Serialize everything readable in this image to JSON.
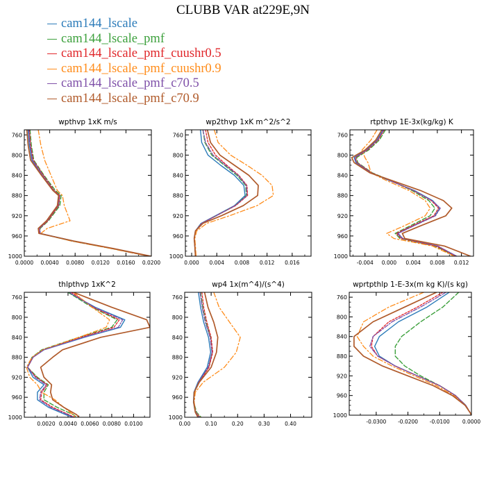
{
  "title": "CLUBB VAR at229E,9N",
  "colors": {
    "cam144_lscale": "#2b7bb9",
    "cam144_lscale_pmf": "#3ca03c",
    "cam144_lscale_pmf_cuushr0.5": "#e0262a",
    "cam144_lscale_pmf_cuushr0.9": "#ff8c1a",
    "cam144_lscale_pmf_c70.5": "#7e4fa8",
    "cam144_lscale_pmf_c70.9": "#b05a2a"
  },
  "legend": [
    {
      "label": "cam144_lscale",
      "color": "#2b7bb9"
    },
    {
      "label": "cam144_lscale_pmf",
      "color": "#3ca03c"
    },
    {
      "label": "cam144_lscale_pmf_cuushr0.5",
      "color": "#e0262a"
    },
    {
      "label": "cam144_lscale_pmf_cuushr0.9",
      "color": "#ff8c1a"
    },
    {
      "label": "cam144_lscale_pmf_c70.5",
      "color": "#7e4fa8"
    },
    {
      "label": "cam144_lscale_pmf_c70.9",
      "color": "#b05a2a"
    }
  ],
  "chart_data": [
    {
      "type": "line",
      "title": "wpthvp  1xK m/s",
      "xlim": [
        0,
        0.02
      ],
      "ylim": [
        750,
        1000
      ],
      "xticks": [
        0,
        0.004,
        0.008,
        0.012,
        0.016,
        0.02
      ],
      "xticklabels": [
        "0.0000",
        "0.0040",
        "0.0080",
        "0.0120",
        "0.0160",
        "0.0200"
      ],
      "yticks": [
        760,
        800,
        840,
        880,
        920,
        960,
        1000
      ],
      "yticklabels": [
        "760",
        "800",
        "840",
        "880",
        "920",
        "960",
        "1000"
      ],
      "levels": [
        750,
        780,
        810,
        840,
        870,
        880,
        900,
        930,
        945,
        955,
        970,
        985,
        1000
      ],
      "series": [
        {
          "name": "cam144_lscale",
          "values": [
            0.0006,
            0.0008,
            0.0012,
            0.0028,
            0.0046,
            0.0056,
            0.0054,
            0.0036,
            0.0024,
            0.0025,
            0.0078,
            0.014,
            0.0198
          ]
        },
        {
          "name": "cam144_lscale_pmf",
          "values": [
            0.0009,
            0.0011,
            0.0015,
            0.0031,
            0.0049,
            0.0058,
            0.0056,
            0.0038,
            0.0025,
            0.0024,
            0.0075,
            0.0138,
            0.0196
          ]
        },
        {
          "name": "cam144_lscale_pmf_cuushr0.5",
          "values": [
            0.0008,
            0.001,
            0.0014,
            0.003,
            0.0047,
            0.0056,
            0.0054,
            0.0037,
            0.0024,
            0.0024,
            0.0077,
            0.014,
            0.0197
          ]
        },
        {
          "name": "cam144_lscale_pmf_cuushr0.9",
          "values": [
            0.0022,
            0.0026,
            0.0032,
            0.0042,
            0.0052,
            0.006,
            0.0063,
            0.0072,
            0.0036,
            0.0026,
            0.0074,
            0.0137,
            0.0195
          ]
        },
        {
          "name": "cam144_lscale_pmf_c70.5",
          "values": [
            0.0007,
            0.0009,
            0.0013,
            0.0029,
            0.0046,
            0.0055,
            0.0053,
            0.0036,
            0.0024,
            0.0025,
            0.0077,
            0.014,
            0.0197
          ]
        },
        {
          "name": "cam144_lscale_pmf_c70.9",
          "values": [
            0.0004,
            0.0006,
            0.001,
            0.0027,
            0.0045,
            0.0054,
            0.0052,
            0.0035,
            0.0022,
            0.0023,
            0.0078,
            0.0141,
            0.0199
          ]
        }
      ]
    },
    {
      "type": "line",
      "title": "wp2thvp  1xK m^2/s^2",
      "xlim": [
        -0.001,
        0.019
      ],
      "ylim": [
        750,
        1000
      ],
      "xticks": [
        0,
        0.004,
        0.008,
        0.012,
        0.016
      ],
      "xticklabels": [
        "0.000",
        "0.004",
        "0.008",
        "0.012",
        "0.016"
      ],
      "yticks": [
        760,
        800,
        840,
        880,
        920,
        960,
        1000
      ],
      "yticklabels": [
        "760",
        "800",
        "840",
        "880",
        "920",
        "960",
        "1000"
      ],
      "levels": [
        750,
        775,
        800,
        820,
        840,
        860,
        880,
        900,
        920,
        935,
        950,
        965,
        980,
        1000
      ],
      "series": [
        {
          "name": "cam144_lscale",
          "values": [
            0.0014,
            0.0016,
            0.0026,
            0.0046,
            0.0068,
            0.0083,
            0.0085,
            0.0068,
            0.0038,
            0.0015,
            0.0006,
            0.0004,
            0.0005,
            0.0006
          ]
        },
        {
          "name": "cam144_lscale_pmf",
          "values": [
            0.0018,
            0.0021,
            0.0032,
            0.0052,
            0.0072,
            0.0086,
            0.0087,
            0.0069,
            0.0039,
            0.0016,
            0.0006,
            0.0004,
            0.0005,
            0.0006
          ]
        },
        {
          "name": "cam144_lscale_pmf_cuushr0.5",
          "values": [
            0.0022,
            0.0026,
            0.0038,
            0.0056,
            0.0075,
            0.0088,
            0.0089,
            0.007,
            0.0039,
            0.0016,
            0.0006,
            0.0004,
            0.0005,
            0.0006
          ]
        },
        {
          "name": "cam144_lscale_pmf_cuushr0.9",
          "values": [
            0.0036,
            0.0042,
            0.0062,
            0.0088,
            0.0112,
            0.0128,
            0.013,
            0.0104,
            0.006,
            0.0024,
            0.0008,
            0.0005,
            0.0006,
            0.0007
          ]
        },
        {
          "name": "cam144_lscale_pmf_c70.5",
          "values": [
            0.0018,
            0.0022,
            0.0034,
            0.0054,
            0.0074,
            0.0087,
            0.0088,
            0.0069,
            0.0039,
            0.0016,
            0.0006,
            0.0004,
            0.0005,
            0.0006
          ]
        },
        {
          "name": "cam144_lscale_pmf_c70.9",
          "values": [
            0.0025,
            0.003,
            0.0045,
            0.0068,
            0.0091,
            0.0106,
            0.0105,
            0.0082,
            0.0047,
            0.0018,
            0.0006,
            0.0004,
            0.0005,
            0.0006
          ]
        }
      ]
    },
    {
      "type": "line",
      "title": "rtpthvp  1E-3x(kg/kg) K",
      "xlim": [
        -0.0065,
        0.014
      ],
      "ylim": [
        750,
        1000
      ],
      "xticks": [
        -0.004,
        0,
        0.004,
        0.008,
        0.012
      ],
      "xticklabels": [
        "-0.004",
        "0.000",
        "0.004",
        "0.008",
        "0.012"
      ],
      "yticks": [
        760,
        800,
        840,
        880,
        920,
        960,
        1000
      ],
      "yticklabels": [
        "760",
        "800",
        "840",
        "880",
        "920",
        "960",
        "1000"
      ],
      "levels": [
        750,
        770,
        790,
        805,
        815,
        835,
        850,
        870,
        890,
        905,
        920,
        940,
        955,
        965,
        980,
        1000
      ],
      "series": [
        {
          "name": "cam144_lscale",
          "values": [
            -0.001,
            -0.002,
            -0.0038,
            -0.0058,
            -0.0055,
            -0.003,
            0,
            0.0042,
            0.0072,
            0.0084,
            0.0076,
            0.004,
            0.0014,
            0.0022,
            0.008,
            0.0112
          ]
        },
        {
          "name": "cam144_lscale_pmf",
          "values": [
            -0.0006,
            -0.0016,
            -0.0034,
            -0.0054,
            -0.0052,
            -0.0028,
            0.0002,
            0.0038,
            0.0066,
            0.0076,
            0.0068,
            0.0035,
            0.001,
            0.0018,
            0.0076,
            0.011
          ]
        },
        {
          "name": "cam144_lscale_pmf_cuushr0.5",
          "values": [
            -0.0008,
            -0.0018,
            -0.0036,
            -0.0056,
            -0.0053,
            -0.0029,
            0.0001,
            0.004,
            0.007,
            0.0082,
            0.0074,
            0.0038,
            0.0012,
            0.002,
            0.0078,
            0.0111
          ]
        },
        {
          "name": "cam144_lscale_pmf_cuushr0.9",
          "values": [
            -0.002,
            -0.003,
            -0.0045,
            -0.004,
            -0.0035,
            -0.003,
            -0.0005,
            0.0033,
            0.006,
            0.0068,
            0.006,
            0.0025,
            -0.0004,
            0.0008,
            0.0072,
            0.0108
          ]
        },
        {
          "name": "cam144_lscale_pmf_c70.5",
          "values": [
            -0.0009,
            -0.0019,
            -0.0037,
            -0.0057,
            -0.0054,
            -0.003,
            0.0001,
            0.0041,
            0.0071,
            0.0085,
            0.0077,
            0.0041,
            0.0015,
            0.0023,
            0.0081,
            0.0112
          ]
        },
        {
          "name": "cam144_lscale_pmf_c70.9",
          "values": [
            -0.0012,
            -0.0022,
            -0.004,
            -0.0062,
            -0.0058,
            -0.0032,
            0.0004,
            0.0052,
            0.009,
            0.0104,
            0.0094,
            0.0052,
            0.0022,
            0.0026,
            0.0092,
            0.0135
          ]
        }
      ]
    },
    {
      "type": "line",
      "title": "thlpthvp  1xK^2",
      "xlim": [
        0,
        0.0115
      ],
      "ylim": [
        750,
        1000
      ],
      "xticks": [
        0.002,
        0.004,
        0.006,
        0.008,
        0.01
      ],
      "xticklabels": [
        "0.0020",
        "0.0040",
        "0.0060",
        "0.0080",
        "0.0100"
      ],
      "yticks": [
        760,
        800,
        840,
        880,
        920,
        960,
        1000
      ],
      "yticklabels": [
        "760",
        "800",
        "840",
        "880",
        "920",
        "960",
        "1000"
      ],
      "levels": [
        750,
        780,
        805,
        820,
        840,
        865,
        880,
        900,
        920,
        935,
        950,
        965,
        980,
        995,
        1000
      ],
      "series": [
        {
          "name": "cam144_lscale",
          "values": [
            0.004,
            0.0065,
            0.0092,
            0.0088,
            0.0055,
            0.0018,
            0.0008,
            0.0003,
            0.0008,
            0.0018,
            0.0012,
            0.0012,
            0.0022,
            0.0038,
            0.0045
          ]
        },
        {
          "name": "cam144_lscale_pmf",
          "values": [
            0.004,
            0.0062,
            0.0085,
            0.008,
            0.005,
            0.0016,
            0.0007,
            0.0003,
            0.0012,
            0.0022,
            0.0018,
            0.0018,
            0.003,
            0.0045,
            0.0048
          ]
        },
        {
          "name": "cam144_lscale_pmf_cuushr0.5",
          "values": [
            0.0043,
            0.0063,
            0.0087,
            0.0082,
            0.0052,
            0.0017,
            0.0008,
            0.0003,
            0.0011,
            0.0021,
            0.0016,
            0.0015,
            0.0026,
            0.0041,
            0.0046
          ]
        },
        {
          "name": "cam144_lscale_pmf_cuushr0.9",
          "values": [
            0.0045,
            0.0062,
            0.0078,
            0.0075,
            0.005,
            0.0017,
            0.0007,
            0.0002,
            0.0005,
            0.0012,
            0.0016,
            0.0028,
            0.0036,
            0.0045,
            0.0047
          ]
        },
        {
          "name": "cam144_lscale_pmf_c70.5",
          "values": [
            0.0041,
            0.0064,
            0.009,
            0.0086,
            0.0054,
            0.0018,
            0.0008,
            0.0003,
            0.001,
            0.002,
            0.0015,
            0.0014,
            0.0024,
            0.004,
            0.0045
          ]
        },
        {
          "name": "cam144_lscale_pmf_c70.9",
          "values": [
            0.0045,
            0.008,
            0.0112,
            0.0115,
            0.007,
            0.0035,
            0.0026,
            0.0015,
            0.0018,
            0.0025,
            0.0024,
            0.0026,
            0.0036,
            0.0048,
            0.005
          ]
        }
      ]
    },
    {
      "type": "line",
      "title": "wp4  1x(m^4)/(s^4)",
      "xlim": [
        0,
        0.48
      ],
      "ylim": [
        750,
        1000
      ],
      "xticks": [
        0,
        0.1,
        0.2,
        0.3,
        0.4
      ],
      "xticklabels": [
        "0.00",
        "0.10",
        "0.20",
        "0.30",
        "0.40"
      ],
      "yticks": [
        760,
        800,
        840,
        880,
        920,
        960,
        1000
      ],
      "yticklabels": [
        "760",
        "800",
        "840",
        "880",
        "920",
        "960",
        "1000"
      ],
      "levels": [
        750,
        780,
        810,
        840,
        870,
        900,
        930,
        950,
        970,
        990,
        1000
      ],
      "series": [
        {
          "name": "cam144_lscale",
          "values": [
            0.052,
            0.06,
            0.072,
            0.09,
            0.098,
            0.085,
            0.05,
            0.035,
            0.033,
            0.04,
            0.052
          ]
        },
        {
          "name": "cam144_lscale_pmf",
          "values": [
            0.06,
            0.068,
            0.08,
            0.098,
            0.104,
            0.09,
            0.053,
            0.036,
            0.034,
            0.045,
            0.062
          ]
        },
        {
          "name": "cam144_lscale_pmf_cuushr0.5",
          "values": [
            0.065,
            0.072,
            0.084,
            0.1,
            0.106,
            0.092,
            0.054,
            0.036,
            0.034,
            0.042,
            0.058
          ]
        },
        {
          "name": "cam144_lscale_pmf_cuushr0.9",
          "values": [
            0.11,
            0.13,
            0.17,
            0.21,
            0.195,
            0.15,
            0.07,
            0.04,
            0.036,
            0.042,
            0.06
          ]
        },
        {
          "name": "cam144_lscale_pmf_c70.5",
          "values": [
            0.058,
            0.066,
            0.078,
            0.096,
            0.103,
            0.089,
            0.052,
            0.036,
            0.034,
            0.042,
            0.056
          ]
        },
        {
          "name": "cam144_lscale_pmf_c70.9",
          "values": [
            0.075,
            0.088,
            0.11,
            0.125,
            0.12,
            0.1,
            0.055,
            0.036,
            0.034,
            0.04,
            0.05
          ]
        }
      ]
    },
    {
      "type": "line",
      "title": "wprtpthlp  1-E-3x(m kg K)/(s kg)",
      "xlim": [
        -0.0385,
        0
      ],
      "ylim": [
        750,
        1000
      ],
      "xticks": [
        -0.03,
        -0.02,
        -0.01,
        0
      ],
      "xticklabels": [
        "-0.0300",
        "-0.0200",
        "-0.0100",
        "0.0000"
      ],
      "yticks": [
        760,
        800,
        840,
        880,
        920,
        960,
        1000
      ],
      "yticklabels": [
        "760",
        "800",
        "840",
        "880",
        "920",
        "960",
        "1000"
      ],
      "levels": [
        750,
        780,
        810,
        840,
        860,
        880,
        900,
        920,
        940,
        960,
        980,
        995,
        1000
      ],
      "series": [
        {
          "name": "cam144_lscale",
          "values": [
            -0.007,
            -0.014,
            -0.023,
            -0.029,
            -0.0305,
            -0.029,
            -0.024,
            -0.017,
            -0.01,
            -0.005,
            -0.0018,
            -0.0004,
            0
          ]
        },
        {
          "name": "cam144_lscale_pmf",
          "values": [
            -0.004,
            -0.009,
            -0.016,
            -0.022,
            -0.024,
            -0.024,
            -0.021,
            -0.016,
            -0.01,
            -0.005,
            -0.0018,
            -0.0004,
            0
          ]
        },
        {
          "name": "cam144_lscale_pmf_cuushr0.5",
          "values": [
            -0.009,
            -0.017,
            -0.026,
            -0.031,
            -0.0315,
            -0.0295,
            -0.024,
            -0.017,
            -0.01,
            -0.005,
            -0.0018,
            -0.0004,
            0
          ]
        },
        {
          "name": "cam144_lscale_pmf_cuushr0.9",
          "values": [
            -0.015,
            -0.026,
            -0.034,
            -0.036,
            -0.034,
            -0.031,
            -0.025,
            -0.018,
            -0.011,
            -0.0055,
            -0.002,
            -0.0004,
            0
          ]
        },
        {
          "name": "cam144_lscale_pmf_c70.5",
          "values": [
            -0.008,
            -0.016,
            -0.025,
            -0.031,
            -0.032,
            -0.0295,
            -0.024,
            -0.017,
            -0.01,
            -0.005,
            -0.0018,
            -0.0004,
            0
          ]
        },
        {
          "name": "cam144_lscale_pmf_c70.9",
          "values": [
            -0.011,
            -0.021,
            -0.031,
            -0.037,
            -0.037,
            -0.034,
            -0.028,
            -0.02,
            -0.012,
            -0.006,
            -0.002,
            -0.0004,
            0
          ]
        }
      ]
    }
  ]
}
